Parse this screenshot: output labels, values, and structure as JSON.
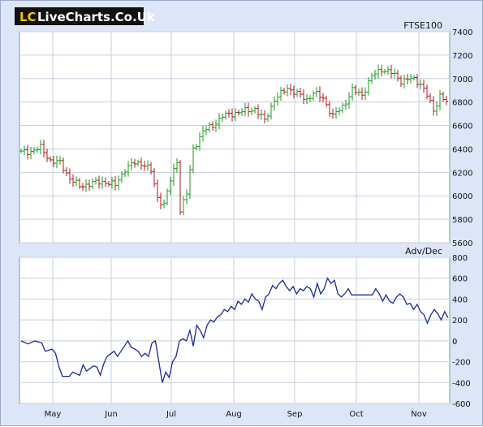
{
  "logo": {
    "mark": "LC",
    "text": "LiveCharts.Co.Uk"
  },
  "colors": {
    "up": "#1f9a1f",
    "down": "#b01818",
    "line": "#1a2a9a",
    "grid": "#c8cede",
    "panel_bg": "#ffffff",
    "frame_bg": "#dde6f8"
  },
  "chart_data": [
    {
      "type": "candlestick",
      "title": "FTSE100",
      "x_labels": [
        "May",
        "Jun",
        "Jul",
        "Aug",
        "Sep",
        "Oct",
        "Nov"
      ],
      "y_ticks": [
        5600,
        5800,
        6000,
        6200,
        6400,
        6600,
        6800,
        7000,
        7200,
        7400
      ],
      "ylim": [
        5600,
        7400
      ],
      "grid": true,
      "close_path": [
        [
          0,
          6370
        ],
        [
          3,
          6380
        ],
        [
          6,
          6410
        ],
        [
          9,
          6300
        ],
        [
          12,
          6280
        ],
        [
          15,
          6150
        ],
        [
          18,
          6080
        ],
        [
          22,
          6110
        ],
        [
          26,
          6120
        ],
        [
          29,
          6090
        ],
        [
          32,
          6230
        ],
        [
          35,
          6280
        ],
        [
          38,
          6270
        ],
        [
          40,
          6210
        ],
        [
          42,
          5980
        ],
        [
          44,
          5930
        ],
        [
          46,
          6130
        ],
        [
          48,
          6300
        ],
        [
          49,
          5880
        ],
        [
          51,
          6020
        ],
        [
          53,
          6400
        ],
        [
          56,
          6550
        ],
        [
          59,
          6600
        ],
        [
          62,
          6680
        ],
        [
          65,
          6700
        ],
        [
          68,
          6720
        ],
        [
          72,
          6740
        ],
        [
          75,
          6640
        ],
        [
          78,
          6820
        ],
        [
          82,
          6920
        ],
        [
          85,
          6870
        ],
        [
          88,
          6820
        ],
        [
          90,
          6880
        ],
        [
          93,
          6830
        ],
        [
          96,
          6680
        ],
        [
          99,
          6760
        ],
        [
          102,
          6900
        ],
        [
          105,
          6860
        ],
        [
          108,
          7020
        ],
        [
          111,
          7080
        ],
        [
          114,
          7050
        ],
        [
          117,
          6980
        ],
        [
          120,
          7000
        ],
        [
          123,
          6960
        ],
        [
          125,
          6860
        ],
        [
          127,
          6720
        ],
        [
          129,
          6860
        ],
        [
          131,
          6800
        ]
      ]
    },
    {
      "type": "line",
      "title": "Adv/Dec",
      "x_labels": [
        "May",
        "Jun",
        "Jul",
        "Aug",
        "Sep",
        "Oct",
        "Nov"
      ],
      "y_ticks": [
        -600,
        -400,
        -200,
        0,
        200,
        400,
        600,
        800
      ],
      "ylim": [
        -600,
        800
      ],
      "grid": true,
      "points": [
        [
          0,
          0
        ],
        [
          2,
          -30
        ],
        [
          4,
          0
        ],
        [
          6,
          -20
        ],
        [
          7,
          -100
        ],
        [
          9,
          -80
        ],
        [
          10,
          -120
        ],
        [
          11,
          -250
        ],
        [
          12,
          -340
        ],
        [
          14,
          -340
        ],
        [
          15,
          -300
        ],
        [
          17,
          -330
        ],
        [
          18,
          -230
        ],
        [
          19,
          -290
        ],
        [
          21,
          -240
        ],
        [
          22,
          -250
        ],
        [
          23,
          -330
        ],
        [
          24,
          -220
        ],
        [
          25,
          -150
        ],
        [
          27,
          -100
        ],
        [
          28,
          -150
        ],
        [
          30,
          -50
        ],
        [
          31,
          0
        ],
        [
          32,
          -60
        ],
        [
          33,
          -80
        ],
        [
          34,
          -100
        ],
        [
          35,
          -150
        ],
        [
          36,
          -120
        ],
        [
          37,
          -150
        ],
        [
          38,
          -20
        ],
        [
          39,
          0
        ],
        [
          40,
          -200
        ],
        [
          41,
          -400
        ],
        [
          42,
          -300
        ],
        [
          43,
          -350
        ],
        [
          44,
          -200
        ],
        [
          45,
          -150
        ],
        [
          46,
          0
        ],
        [
          47,
          20
        ],
        [
          48,
          0
        ],
        [
          49,
          100
        ],
        [
          50,
          -50
        ],
        [
          51,
          150
        ],
        [
          52,
          100
        ],
        [
          53,
          30
        ],
        [
          54,
          150
        ],
        [
          55,
          200
        ],
        [
          56,
          180
        ],
        [
          57,
          230
        ],
        [
          58,
          250
        ],
        [
          59,
          300
        ],
        [
          60,
          280
        ],
        [
          61,
          330
        ],
        [
          62,
          300
        ],
        [
          63,
          380
        ],
        [
          64,
          350
        ],
        [
          65,
          400
        ],
        [
          66,
          370
        ],
        [
          67,
          450
        ],
        [
          68,
          400
        ],
        [
          69,
          380
        ],
        [
          70,
          300
        ],
        [
          71,
          420
        ],
        [
          72,
          450
        ],
        [
          73,
          530
        ],
        [
          74,
          500
        ],
        [
          75,
          550
        ],
        [
          76,
          580
        ],
        [
          77,
          520
        ],
        [
          78,
          480
        ],
        [
          79,
          520
        ],
        [
          80,
          450
        ],
        [
          81,
          500
        ],
        [
          82,
          480
        ],
        [
          83,
          520
        ],
        [
          84,
          500
        ],
        [
          85,
          420
        ],
        [
          86,
          550
        ],
        [
          87,
          450
        ],
        [
          88,
          500
        ],
        [
          89,
          600
        ],
        [
          90,
          550
        ],
        [
          91,
          580
        ],
        [
          92,
          450
        ],
        [
          93,
          420
        ],
        [
          94,
          450
        ],
        [
          95,
          500
        ],
        [
          96,
          440
        ],
        [
          97,
          440
        ],
        [
          98,
          440
        ],
        [
          99,
          440
        ],
        [
          100,
          440
        ],
        [
          101,
          440
        ],
        [
          102,
          440
        ],
        [
          103,
          500
        ],
        [
          104,
          450
        ],
        [
          105,
          380
        ],
        [
          106,
          440
        ],
        [
          107,
          380
        ],
        [
          108,
          360
        ],
        [
          109,
          420
        ],
        [
          110,
          450
        ],
        [
          111,
          420
        ],
        [
          112,
          350
        ],
        [
          113,
          360
        ],
        [
          114,
          300
        ],
        [
          115,
          350
        ],
        [
          116,
          280
        ],
        [
          117,
          250
        ],
        [
          118,
          170
        ],
        [
          119,
          250
        ],
        [
          120,
          300
        ],
        [
          121,
          260
        ],
        [
          122,
          200
        ],
        [
          123,
          280
        ],
        [
          124,
          220
        ]
      ]
    }
  ]
}
